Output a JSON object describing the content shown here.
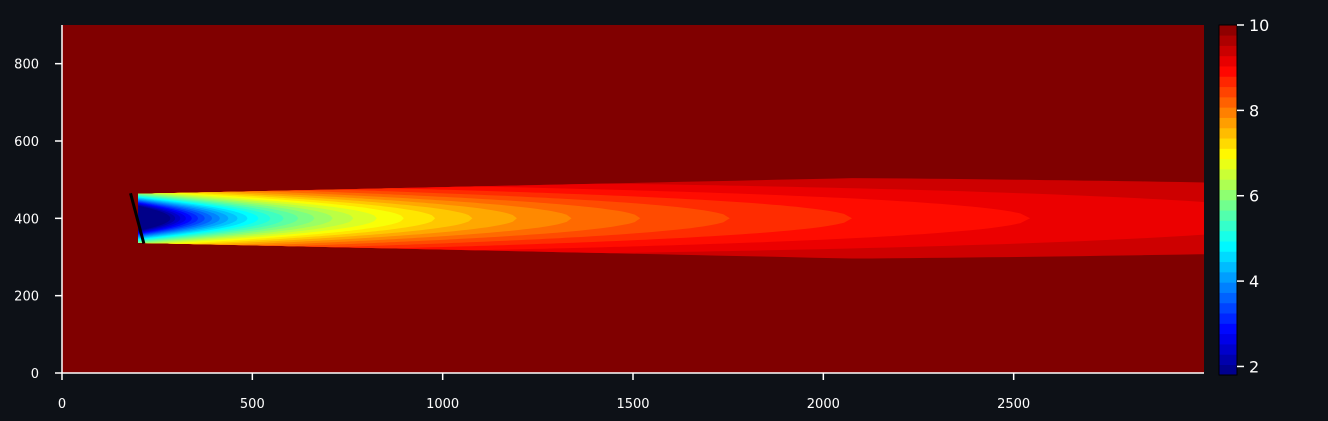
{
  "chart_data": {
    "type": "heatmap",
    "title": "",
    "xlabel": "",
    "ylabel": "",
    "xlim": [
      0,
      3000
    ],
    "ylim": [
      0,
      900
    ],
    "x_ticks": [
      0,
      500,
      1000,
      1500,
      2000,
      2500
    ],
    "x_tick_labels": [
      "0",
      "500",
      "1000",
      "1500",
      "2000",
      "2500"
    ],
    "y_ticks": [
      0,
      200,
      400,
      600,
      800
    ],
    "y_tick_labels": [
      "0",
      "200",
      "400",
      "600",
      "800"
    ],
    "colorbar": {
      "range": [
        1.8,
        10.0
      ],
      "ticks": [
        2,
        4,
        6,
        8,
        10
      ],
      "tick_labels": [
        "2",
        "4",
        "6",
        "8",
        "10"
      ],
      "colormap": "jet"
    },
    "background_value": 10,
    "wake": {
      "turbine_x": 200,
      "turbine_y": 400,
      "rotor_top": [
        180,
        465
      ],
      "rotor_bottom": [
        215,
        335
      ],
      "min_value": 1.8,
      "contour_extents": [
        {
          "level": 9.0,
          "x_end": 2910,
          "half_width": 75
        },
        {
          "level": 8.5,
          "x_end": 2320,
          "half_width": 65
        },
        {
          "level": 8.0,
          "x_end": 1960,
          "half_width": 58
        },
        {
          "level": 7.5,
          "x_end": 1700,
          "half_width": 52
        },
        {
          "level": 7.0,
          "x_end": 1420,
          "half_width": 47
        }
      ]
    },
    "grid": false,
    "legend": "none"
  },
  "colors": {
    "figure_background": "#0d1117",
    "axis_color": "#ffffff",
    "rotor_line": "#000000"
  }
}
